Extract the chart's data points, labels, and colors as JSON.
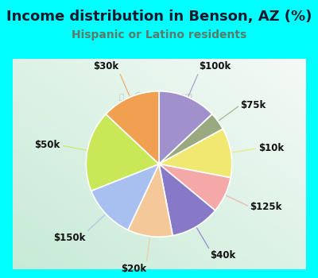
{
  "title": "Income distribution in Benson, AZ (%)",
  "subtitle": "Hispanic or Latino residents",
  "title_color": "#1a1a2e",
  "subtitle_color": "#5a7a6a",
  "background_color": "#00ffff",
  "labels": [
    "$100k",
    "$75k",
    "$10k",
    "$125k",
    "$40k",
    "$20k",
    "$150k",
    "$50k",
    "$30k"
  ],
  "sizes": [
    13,
    4,
    11,
    8,
    11,
    10,
    12,
    18,
    13
  ],
  "colors": [
    "#a090cc",
    "#9aaa80",
    "#f0e870",
    "#f4a8a8",
    "#8878c8",
    "#f5c89a",
    "#a8c0f0",
    "#c8e858",
    "#f0a050"
  ],
  "start_angle": 90,
  "figsize": [
    4.0,
    3.5
  ],
  "dpi": 100,
  "title_fontsize": 13,
  "subtitle_fontsize": 10,
  "label_fontsize": 8.5,
  "watermark_text": "City-Data.com"
}
